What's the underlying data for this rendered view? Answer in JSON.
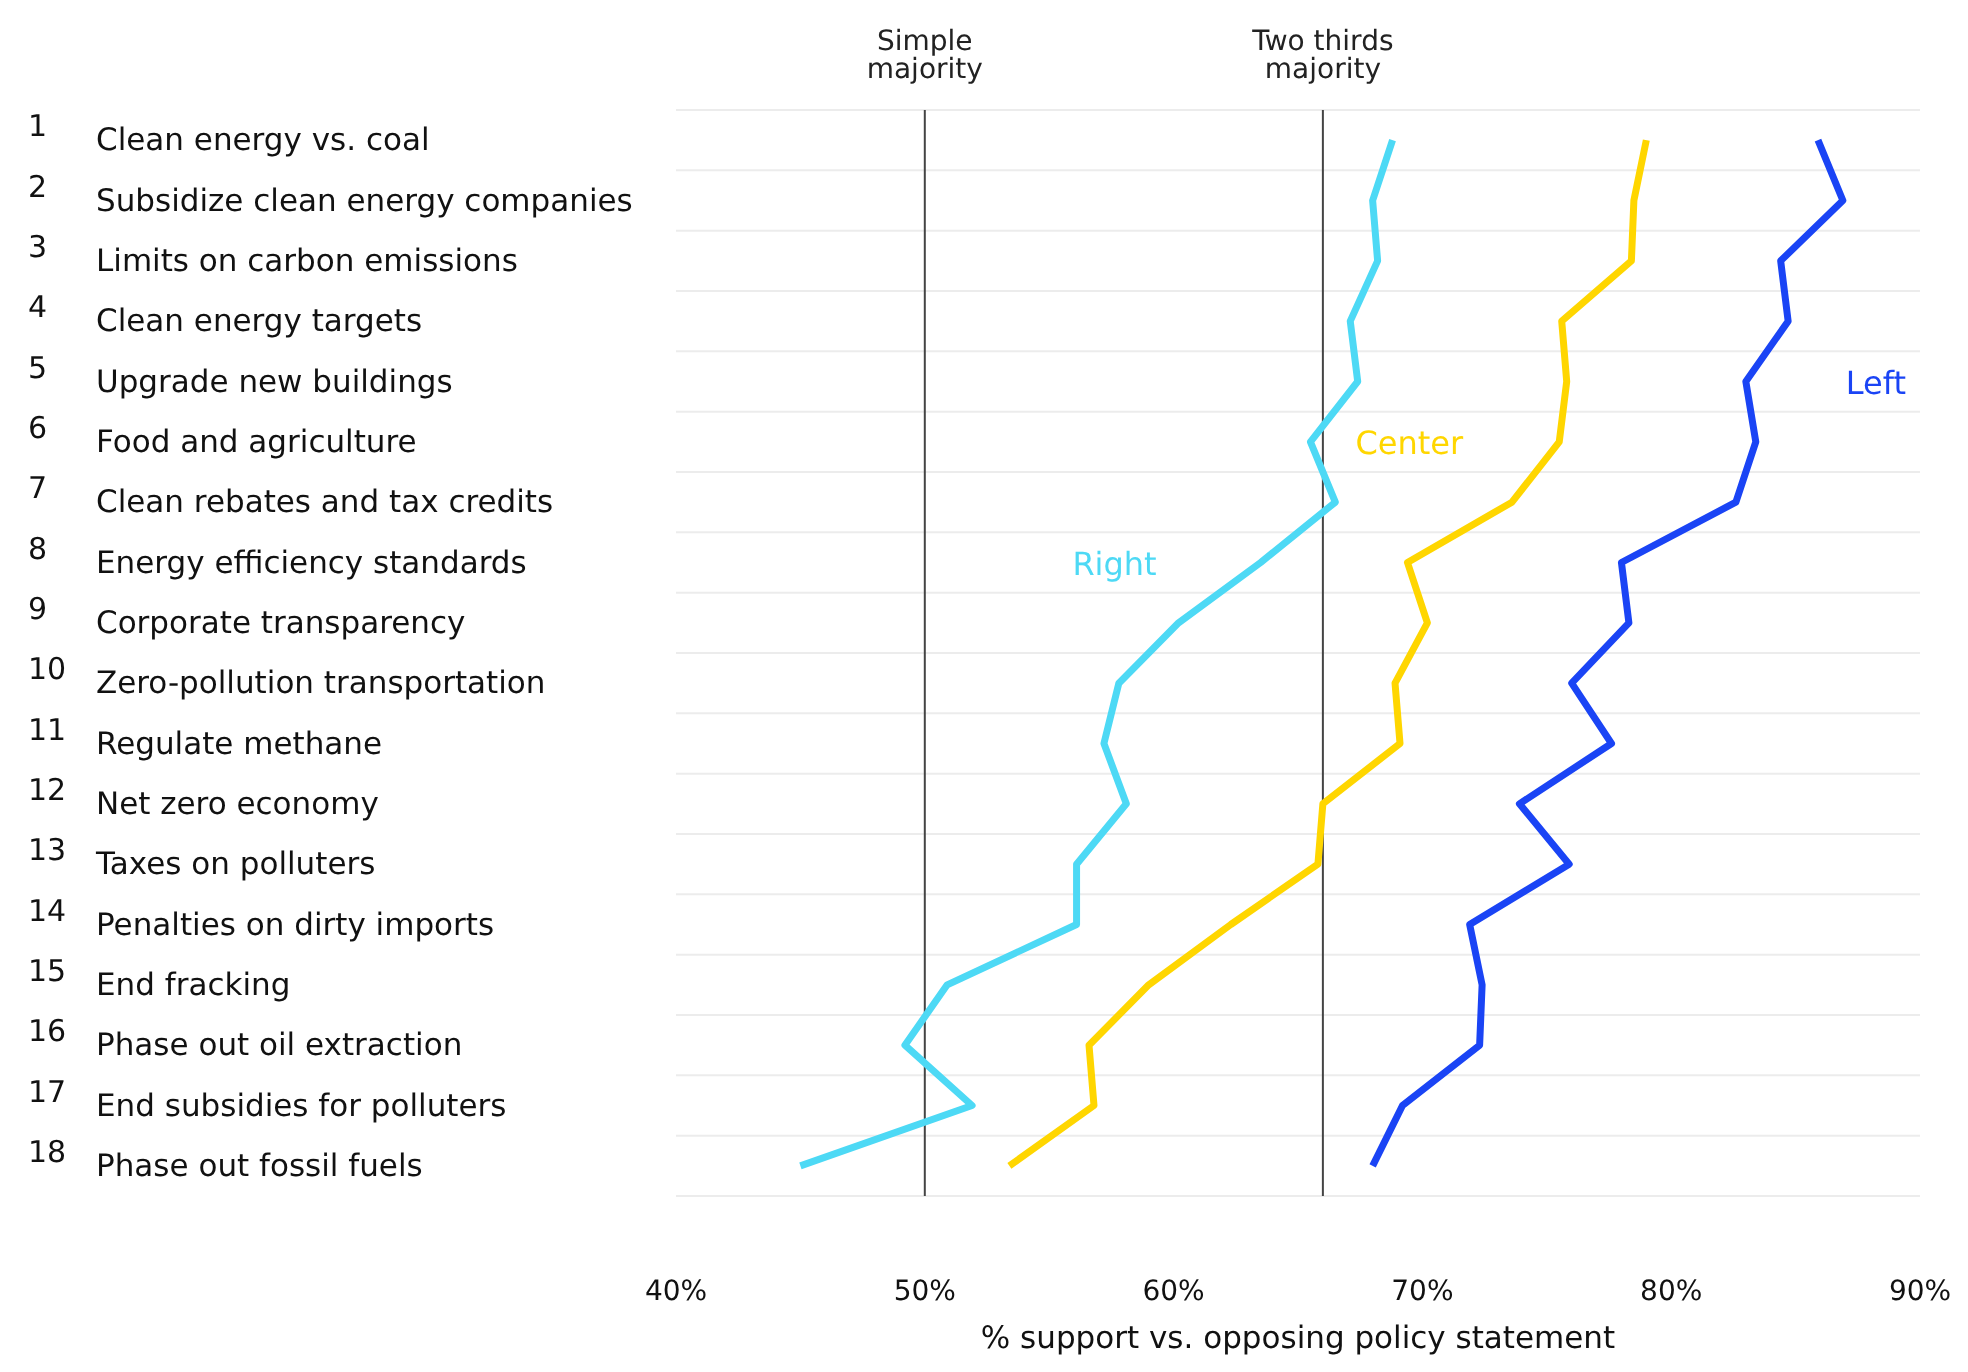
{
  "chart_data": {
    "type": "line",
    "xlabel": "% support vs. opposing policy statement",
    "categories": [
      "1 Clean energy vs. coal",
      "2 Subsidize clean energy companies",
      "3 Limits on carbon emissions",
      "4 Clean energy targets",
      "5 Upgrade new buildings",
      "6 Food and agriculture",
      "7 Clean rebates and tax credits",
      "8 Energy efficiency standards",
      "9 Corporate transparency",
      "10 Zero-pollution transportation",
      "11 Regulate methane",
      "12 Net zero economy",
      "13 Taxes on polluters",
      "14 Penalties on dirty imports",
      "15 End fracking",
      "16 Phase out oil extraction",
      "17 End subsidies for polluters",
      "18 Phase out fossil fuels"
    ],
    "orientation": "horizontal",
    "series": [
      {
        "name": "Right",
        "color": "#4dd9f5",
        "values": [
          68.8,
          68.0,
          68.2,
          67.1,
          67.4,
          65.5,
          66.5,
          63.5,
          60.2,
          57.8,
          57.2,
          58.1,
          56.1,
          56.1,
          50.9,
          49.2,
          51.9,
          45.0
        ]
      },
      {
        "name": "Center",
        "color": "#ffd600",
        "values": [
          79.0,
          78.5,
          78.4,
          75.6,
          75.8,
          75.5,
          73.6,
          69.4,
          70.2,
          68.9,
          69.1,
          66.0,
          65.8,
          62.3,
          59.0,
          56.6,
          56.8,
          53.4
        ]
      },
      {
        "name": "Left",
        "color": "#1a44f5",
        "values": [
          85.9,
          86.9,
          84.4,
          84.7,
          83.0,
          83.4,
          82.6,
          78.0,
          78.3,
          76.0,
          77.6,
          73.9,
          75.9,
          71.9,
          72.4,
          72.3,
          69.2,
          68.0
        ]
      }
    ],
    "xlim": [
      40,
      90
    ],
    "xticks": [
      {
        "value": 40,
        "label": "40%"
      },
      {
        "value": 50,
        "label": "50%"
      },
      {
        "value": 60,
        "label": "60%"
      },
      {
        "value": 70,
        "label": "70%"
      },
      {
        "value": 80,
        "label": "80%"
      },
      {
        "value": 90,
        "label": "90%"
      }
    ],
    "ref_lines": [
      {
        "axis": "x",
        "value": 50,
        "label": "Simple majority",
        "color": "#444444"
      },
      {
        "axis": "x",
        "value": 66,
        "label": "Two thirds majority",
        "color": "#444444"
      }
    ],
    "grid": "y",
    "legend": false,
    "marker": "none",
    "line_style": "solid"
  }
}
